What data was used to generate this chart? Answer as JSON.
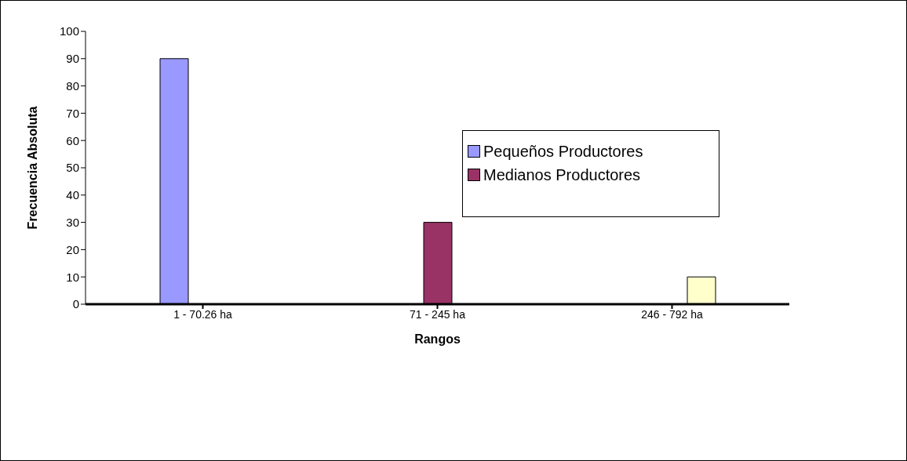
{
  "chart_data": {
    "type": "bar",
    "xlabel": "Rangos",
    "ylabel": "Frecuencia Absoluta",
    "categories": [
      "1 - 70.26 ha",
      "71 - 245 ha",
      "246 - 792 ha"
    ],
    "series": [
      {
        "name": "Pequeños Productores",
        "color": "#9999ff",
        "values": [
          90,
          null,
          null
        ]
      },
      {
        "name": "Medianos Productores",
        "color": "#993366",
        "values": [
          null,
          30,
          null
        ]
      },
      {
        "color": "#ffffcc",
        "values": [
          null,
          null,
          10
        ]
      }
    ],
    "ylim": [
      0,
      100
    ],
    "yticks": [
      0,
      10,
      20,
      30,
      40,
      50,
      60,
      70,
      80,
      90,
      100
    ],
    "legend": "right"
  }
}
